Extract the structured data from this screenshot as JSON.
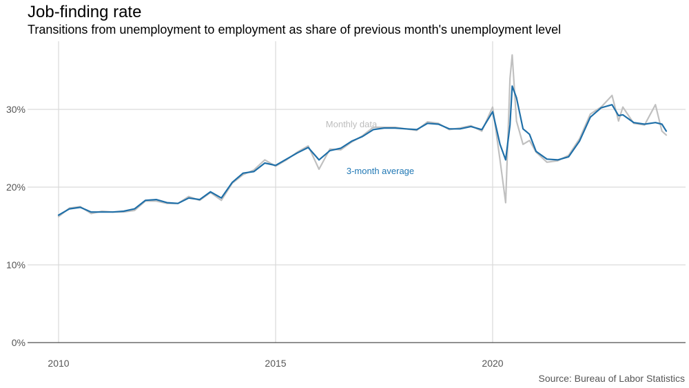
{
  "title": "Job-finding rate",
  "subtitle": "Transitions from unemployment to employment as share of previous month's unemployment level",
  "source": "Source: Bureau of Labor Statistics",
  "colors": {
    "monthly": "#c0c0c0",
    "average": "#1f6fa8",
    "grid": "#d9d9d9",
    "baseline": "#222222"
  },
  "chart_data": {
    "type": "line",
    "x_unit": "year (decimal)",
    "xlim": [
      2010,
      2024
    ],
    "ylim": [
      0,
      37
    ],
    "y_ticks": [
      0,
      10,
      20,
      30
    ],
    "y_tick_labels": [
      "0%",
      "10%",
      "20%",
      "30%"
    ],
    "x_ticks": [
      2010,
      2015,
      2020
    ],
    "x_tick_labels": [
      "2010",
      "2015",
      "2020"
    ],
    "grid": true,
    "annotations": [
      {
        "text": "Monthly data",
        "series": "monthly"
      },
      {
        "text": "3-month average",
        "series": "average"
      }
    ],
    "series": [
      {
        "name": "Monthly data",
        "points": [
          [
            2010.0,
            16.2
          ],
          [
            2010.25,
            17.3
          ],
          [
            2010.5,
            17.5
          ],
          [
            2010.75,
            16.6
          ],
          [
            2011.0,
            16.9
          ],
          [
            2011.25,
            16.8
          ],
          [
            2011.5,
            16.8
          ],
          [
            2011.75,
            17.0
          ],
          [
            2012.0,
            18.2
          ],
          [
            2012.25,
            18.2
          ],
          [
            2012.5,
            17.9
          ],
          [
            2012.75,
            17.9
          ],
          [
            2013.0,
            18.8
          ],
          [
            2013.25,
            18.3
          ],
          [
            2013.5,
            19.3
          ],
          [
            2013.75,
            18.3
          ],
          [
            2014.0,
            20.5
          ],
          [
            2014.25,
            21.6
          ],
          [
            2014.5,
            22.2
          ],
          [
            2014.75,
            23.5
          ],
          [
            2015.0,
            22.7
          ],
          [
            2015.25,
            23.5
          ],
          [
            2015.5,
            24.5
          ],
          [
            2015.75,
            25.3
          ],
          [
            2016.0,
            22.3
          ],
          [
            2016.25,
            24.9
          ],
          [
            2016.5,
            24.8
          ],
          [
            2016.75,
            25.8
          ],
          [
            2017.0,
            26.6
          ],
          [
            2017.25,
            27.7
          ],
          [
            2017.5,
            27.7
          ],
          [
            2017.75,
            27.7
          ],
          [
            2018.0,
            27.5
          ],
          [
            2018.25,
            27.3
          ],
          [
            2018.5,
            28.4
          ],
          [
            2018.75,
            28.2
          ],
          [
            2019.0,
            27.4
          ],
          [
            2019.25,
            27.6
          ],
          [
            2019.5,
            27.9
          ],
          [
            2019.75,
            27.2
          ],
          [
            2020.0,
            30.3
          ],
          [
            2020.17,
            23.5
          ],
          [
            2020.3,
            18.0
          ],
          [
            2020.4,
            34.0
          ],
          [
            2020.45,
            37.0
          ],
          [
            2020.55,
            28.5
          ],
          [
            2020.7,
            25.5
          ],
          [
            2020.85,
            26.0
          ],
          [
            2021.0,
            24.5
          ],
          [
            2021.25,
            23.2
          ],
          [
            2021.5,
            23.4
          ],
          [
            2021.75,
            24.1
          ],
          [
            2022.0,
            26.2
          ],
          [
            2022.25,
            29.4
          ],
          [
            2022.5,
            30.3
          ],
          [
            2022.75,
            31.8
          ],
          [
            2022.9,
            28.5
          ],
          [
            2023.0,
            30.3
          ],
          [
            2023.25,
            28.2
          ],
          [
            2023.5,
            28.0
          ],
          [
            2023.75,
            30.6
          ],
          [
            2023.9,
            27.2
          ],
          [
            2024.0,
            26.7
          ]
        ]
      },
      {
        "name": "3-month average",
        "points": [
          [
            2010.0,
            16.4
          ],
          [
            2010.25,
            17.2
          ],
          [
            2010.5,
            17.4
          ],
          [
            2010.75,
            16.8
          ],
          [
            2011.0,
            16.8
          ],
          [
            2011.25,
            16.8
          ],
          [
            2011.5,
            16.9
          ],
          [
            2011.75,
            17.2
          ],
          [
            2012.0,
            18.3
          ],
          [
            2012.25,
            18.4
          ],
          [
            2012.5,
            18.0
          ],
          [
            2012.75,
            17.9
          ],
          [
            2013.0,
            18.6
          ],
          [
            2013.25,
            18.4
          ],
          [
            2013.5,
            19.4
          ],
          [
            2013.75,
            18.6
          ],
          [
            2014.0,
            20.6
          ],
          [
            2014.25,
            21.8
          ],
          [
            2014.5,
            22.0
          ],
          [
            2014.75,
            23.1
          ],
          [
            2015.0,
            22.8
          ],
          [
            2015.25,
            23.6
          ],
          [
            2015.5,
            24.4
          ],
          [
            2015.75,
            25.1
          ],
          [
            2016.0,
            23.5
          ],
          [
            2016.25,
            24.7
          ],
          [
            2016.5,
            25.0
          ],
          [
            2016.75,
            25.9
          ],
          [
            2017.0,
            26.5
          ],
          [
            2017.25,
            27.4
          ],
          [
            2017.5,
            27.6
          ],
          [
            2017.75,
            27.6
          ],
          [
            2018.0,
            27.5
          ],
          [
            2018.25,
            27.4
          ],
          [
            2018.5,
            28.2
          ],
          [
            2018.75,
            28.1
          ],
          [
            2019.0,
            27.5
          ],
          [
            2019.25,
            27.5
          ],
          [
            2019.5,
            27.8
          ],
          [
            2019.75,
            27.4
          ],
          [
            2020.0,
            29.7
          ],
          [
            2020.17,
            25.5
          ],
          [
            2020.3,
            23.5
          ],
          [
            2020.4,
            28.0
          ],
          [
            2020.45,
            33.0
          ],
          [
            2020.55,
            31.5
          ],
          [
            2020.7,
            27.5
          ],
          [
            2020.85,
            26.8
          ],
          [
            2021.0,
            24.6
          ],
          [
            2021.25,
            23.6
          ],
          [
            2021.5,
            23.5
          ],
          [
            2021.75,
            23.9
          ],
          [
            2022.0,
            25.9
          ],
          [
            2022.25,
            29.0
          ],
          [
            2022.5,
            30.2
          ],
          [
            2022.75,
            30.6
          ],
          [
            2022.9,
            29.2
          ],
          [
            2023.0,
            29.3
          ],
          [
            2023.25,
            28.3
          ],
          [
            2023.5,
            28.1
          ],
          [
            2023.75,
            28.3
          ],
          [
            2023.9,
            28.1
          ],
          [
            2024.0,
            27.2
          ]
        ]
      }
    ]
  }
}
